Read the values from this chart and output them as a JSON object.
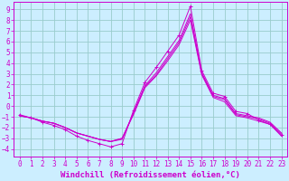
{
  "xlabel": "Windchill (Refroidissement éolien,°C)",
  "bg_color": "#cceeff",
  "line_color": "#cc00cc",
  "grid_color": "#99cccc",
  "spine_color": "#cc00cc",
  "tick_color": "#cc00cc",
  "xlim": [
    -0.5,
    23.5
  ],
  "ylim": [
    -4.7,
    9.7
  ],
  "xticks": [
    0,
    1,
    2,
    3,
    4,
    5,
    6,
    7,
    8,
    9,
    10,
    11,
    12,
    13,
    14,
    15,
    16,
    17,
    18,
    19,
    20,
    21,
    22,
    23
  ],
  "yticks": [
    -4,
    -3,
    -2,
    -1,
    0,
    1,
    2,
    3,
    4,
    5,
    6,
    7,
    8,
    9
  ],
  "lines": [
    {
      "x": [
        0,
        1,
        2,
        3,
        4,
        5,
        6,
        7,
        8,
        9,
        10,
        11,
        12,
        13,
        14,
        15,
        16,
        17,
        18,
        19,
        20,
        21,
        22,
        23
      ],
      "y": [
        -0.8,
        -1.1,
        -1.5,
        -1.8,
        -2.2,
        -2.8,
        -3.2,
        -3.5,
        -3.8,
        -3.5,
        -0.4,
        2.2,
        3.6,
        5.1,
        6.6,
        9.3,
        3.3,
        1.2,
        0.9,
        -0.5,
        -0.7,
        -1.3,
        -1.7,
        -2.7
      ],
      "marker": "+"
    },
    {
      "x": [
        0,
        1,
        2,
        3,
        4,
        5,
        6,
        7,
        8,
        9,
        10,
        11,
        12,
        13,
        14,
        15,
        16,
        17,
        18,
        19,
        20,
        21,
        22,
        23
      ],
      "y": [
        -0.9,
        -1.1,
        -1.4,
        -1.6,
        -2.0,
        -2.5,
        -2.8,
        -3.1,
        -3.3,
        -3.1,
        -0.6,
        1.9,
        3.1,
        4.6,
        6.1,
        8.6,
        3.1,
        1.0,
        0.7,
        -0.7,
        -0.9,
        -1.1,
        -1.5,
        -2.5
      ],
      "marker": null
    },
    {
      "x": [
        0,
        1,
        2,
        3,
        4,
        5,
        6,
        7,
        8,
        9,
        10,
        11,
        12,
        13,
        14,
        15,
        16,
        17,
        18,
        19,
        20,
        21,
        22,
        23
      ],
      "y": [
        -0.9,
        -1.1,
        -1.4,
        -1.6,
        -2.0,
        -2.5,
        -2.8,
        -3.1,
        -3.3,
        -3.0,
        -0.7,
        1.8,
        2.9,
        4.4,
        5.9,
        8.3,
        3.0,
        0.9,
        0.6,
        -0.8,
        -1.0,
        -1.2,
        -1.6,
        -2.6
      ],
      "marker": null
    },
    {
      "x": [
        0,
        1,
        2,
        3,
        4,
        5,
        6,
        7,
        8,
        9,
        10,
        11,
        12,
        13,
        14,
        15,
        16,
        17,
        18,
        19,
        20,
        21,
        22,
        23
      ],
      "y": [
        -0.9,
        -1.1,
        -1.4,
        -1.6,
        -2.0,
        -2.5,
        -2.8,
        -3.1,
        -3.3,
        -3.0,
        -0.8,
        1.7,
        2.8,
        4.2,
        5.7,
        8.0,
        2.9,
        0.8,
        0.4,
        -0.9,
        -1.1,
        -1.4,
        -1.7,
        -2.8
      ],
      "marker": null
    }
  ],
  "xlabel_fontsize": 6.5,
  "tick_fontsize": 5.5
}
